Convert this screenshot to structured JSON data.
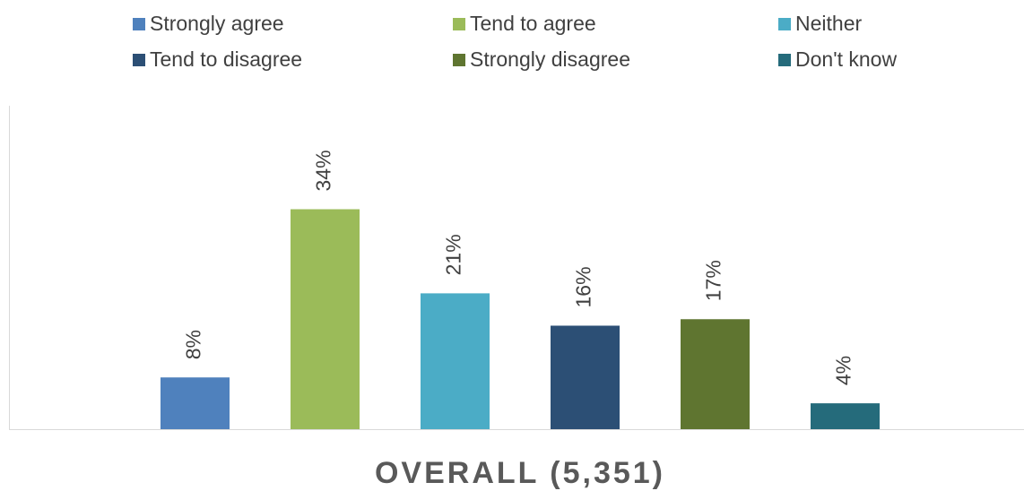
{
  "chart_data": {
    "type": "bar",
    "categories": [
      "OVERALL (5,351)"
    ],
    "series": [
      {
        "name": "Strongly agree",
        "color": "#4f81bd",
        "values": [
          8
        ],
        "value_labels": [
          "8%"
        ]
      },
      {
        "name": "Tend to agree",
        "color": "#9bbb59",
        "values": [
          34
        ],
        "value_labels": [
          "34%"
        ]
      },
      {
        "name": "Neither",
        "color": "#4bacc6",
        "values": [
          21
        ],
        "value_labels": [
          "21%"
        ]
      },
      {
        "name": "Tend to disagree",
        "color": "#2c4f75",
        "values": [
          16
        ],
        "value_labels": [
          "16%"
        ]
      },
      {
        "name": "Strongly disagree",
        "color": "#5f7530",
        "values": [
          17
        ],
        "value_labels": [
          "17%"
        ]
      },
      {
        "name": "Don't know",
        "color": "#256b7b",
        "values": [
          4
        ],
        "value_labels": [
          "4%"
        ]
      }
    ],
    "ylim": [
      0,
      50
    ],
    "legend": "top"
  }
}
